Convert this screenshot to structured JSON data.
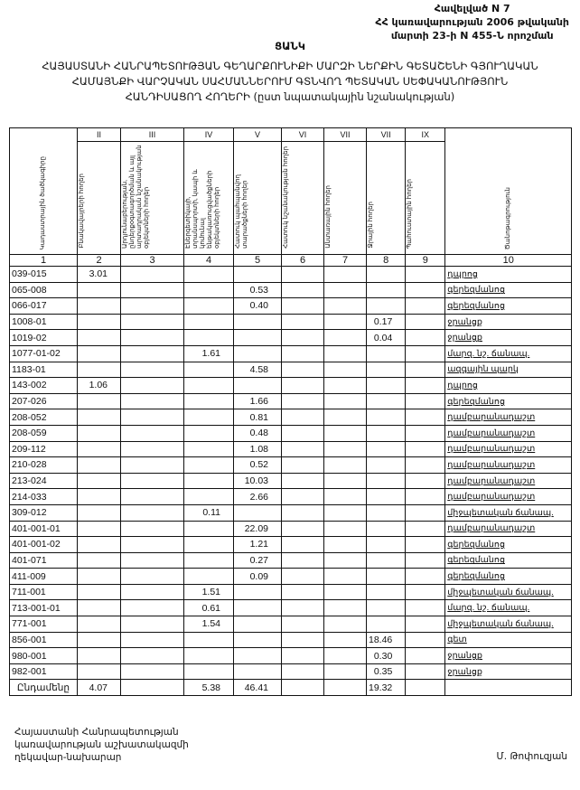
{
  "annex": {
    "line1": "Հավելված N 7",
    "line2": "ՀՀ կառավարության 2006 թվականի",
    "line3": "մարտի 23-ի N 455-Ն որոշման"
  },
  "title": {
    "heading": "ՑԱՆԿ",
    "line1": "ՀԱՅԱՍՏԱՆԻ ՀԱՆՐԱՊԵՏՈՒԹՅԱՆ ԳԵՂԱՐՔՈՒՆԻՔԻ ՄԱՐԶԻ ՆԵՐՔԻՆ ԳԵՏԱՇԵՆԻ ԳՅՈՒՂԱԿԱՆ",
    "line2": "ՀԱՄԱՅՆՔԻ ՎԱՐՉԱԿԱՆ ՍԱՀՄԱՆՆԵՐՈՒՄ ԳՏՆՎՈՂ ՊԵՏԱԿԱՆ ՍԵՓԱԿԱՆՈՒԹՅՈՒՆ",
    "line3": "ՀԱՆԴԻՍԱՑՈՂ ՀՈՂԵՐԻ  (ըստ նպատակային նշանակության)"
  },
  "table": {
    "roman": [
      "",
      "II",
      "III",
      "IV",
      "V",
      "VI",
      "VII",
      "VII",
      "IX",
      ""
    ],
    "headers": [
      "Կադաստրային ծածկագիրը",
      "Բնակավայրերի հողեր",
      "Արդյունաբերության, ընդերքօգտագործման և այլ արտադրական նշանակության օբյեկտների հողեր",
      "Էներգետիկայի, տրանսպորտի, կապի և կոմունալ ենթակառուցվածքների օբյեկտների հողեր",
      "Հատուկ պահպանվող տարածքների հողեր",
      "Հատուկ նշանակության հողեր",
      "Անտառային հողեր",
      "Ջրային հողեր",
      "Պահուստային հողեր",
      "Ծանոթագրություն"
    ],
    "index": [
      "1",
      "2",
      "3",
      "4",
      "5",
      "6",
      "7",
      "8",
      "9",
      "10"
    ],
    "rows": [
      [
        "039-015",
        "3.01",
        "",
        "",
        "",
        "",
        "",
        "",
        "",
        "դպրոց"
      ],
      [
        "065-008",
        "",
        "",
        "",
        "0.53",
        "",
        "",
        "",
        "",
        "գերեզմանոց"
      ],
      [
        "066-017",
        "",
        "",
        "",
        "0.40",
        "",
        "",
        "",
        "",
        "գերեզմանոց"
      ],
      [
        "1008-01",
        "",
        "",
        "",
        "",
        "",
        "",
        "0.17",
        "",
        "ջրանցք"
      ],
      [
        "1019-02",
        "",
        "",
        "",
        "",
        "",
        "",
        "0.04",
        "",
        "ջրանցք"
      ],
      [
        "1077-01-02",
        "",
        "",
        "1.61",
        "",
        "",
        "",
        "",
        "",
        "մարզ. նշ. ճանապ."
      ],
      [
        "1183-01",
        "",
        "",
        "",
        "4.58",
        "",
        "",
        "",
        "",
        "ազգային պարկ"
      ],
      [
        "143-002",
        "1.06",
        "",
        "",
        "",
        "",
        "",
        "",
        "",
        "դպրոց"
      ],
      [
        "207-026",
        "",
        "",
        "",
        "1.66",
        "",
        "",
        "",
        "",
        "գերեզմանոց"
      ],
      [
        "208-052",
        "",
        "",
        "",
        "0.81",
        "",
        "",
        "",
        "",
        "դամբարանադաշտ"
      ],
      [
        "208-059",
        "",
        "",
        "",
        "0.48",
        "",
        "",
        "",
        "",
        "դամբարանադաշտ"
      ],
      [
        "209-112",
        "",
        "",
        "",
        "1.08",
        "",
        "",
        "",
        "",
        "դամբարանադաշտ"
      ],
      [
        "210-028",
        "",
        "",
        "",
        "0.52",
        "",
        "",
        "",
        "",
        "դամբարանադաշտ"
      ],
      [
        "213-024",
        "",
        "",
        "",
        "10.03",
        "",
        "",
        "",
        "",
        "դամբարանադաշտ"
      ],
      [
        "214-033",
        "",
        "",
        "",
        "2.66",
        "",
        "",
        "",
        "",
        "դամբարանադաշտ"
      ],
      [
        "309-012",
        "",
        "",
        "0.11",
        "",
        "",
        "",
        "",
        "",
        "միջպետական ճանապ."
      ],
      [
        "401-001-01",
        "",
        "",
        "",
        "22.09",
        "",
        "",
        "",
        "",
        "դամբարանադաշտ"
      ],
      [
        "401-001-02",
        "",
        "",
        "",
        "1.21",
        "",
        "",
        "",
        "",
        "գերեզմանոց"
      ],
      [
        "401-071",
        "",
        "",
        "",
        "0.27",
        "",
        "",
        "",
        "",
        "գերեզմանոց"
      ],
      [
        "411-009",
        "",
        "",
        "",
        "0.09",
        "",
        "",
        "",
        "",
        "գերեզմանոց"
      ],
      [
        "711-001",
        "",
        "",
        "1.51",
        "",
        "",
        "",
        "",
        "",
        "միջպետական ճանապ."
      ],
      [
        "713-001-01",
        "",
        "",
        "0.61",
        "",
        "",
        "",
        "",
        "",
        "մարզ. նշ. ճանապ."
      ],
      [
        "771-001",
        "",
        "",
        "1.54",
        "",
        "",
        "",
        "",
        "",
        "միջպետական ճանապ."
      ],
      [
        "856-001",
        "",
        "",
        "",
        "",
        "",
        "",
        "18.46",
        "",
        "գետ"
      ],
      [
        "980-001",
        "",
        "",
        "",
        "",
        "",
        "",
        "0.30",
        "",
        "ջրանցք"
      ],
      [
        "982-001",
        "",
        "",
        "",
        "",
        "",
        "",
        "0.35",
        "",
        "ջրանցք"
      ]
    ],
    "total": [
      "Ընդամենը",
      "4.07",
      "",
      "5.38",
      "46.41",
      "",
      "",
      "19.32",
      "",
      ""
    ]
  },
  "footer": {
    "line1": "Հայաստանի Հանրապետության",
    "line2": "կառավարության աշխատակազմի",
    "line3": "ղեկավար-նախարար",
    "signatory": "Մ. Թոփուզյան"
  }
}
